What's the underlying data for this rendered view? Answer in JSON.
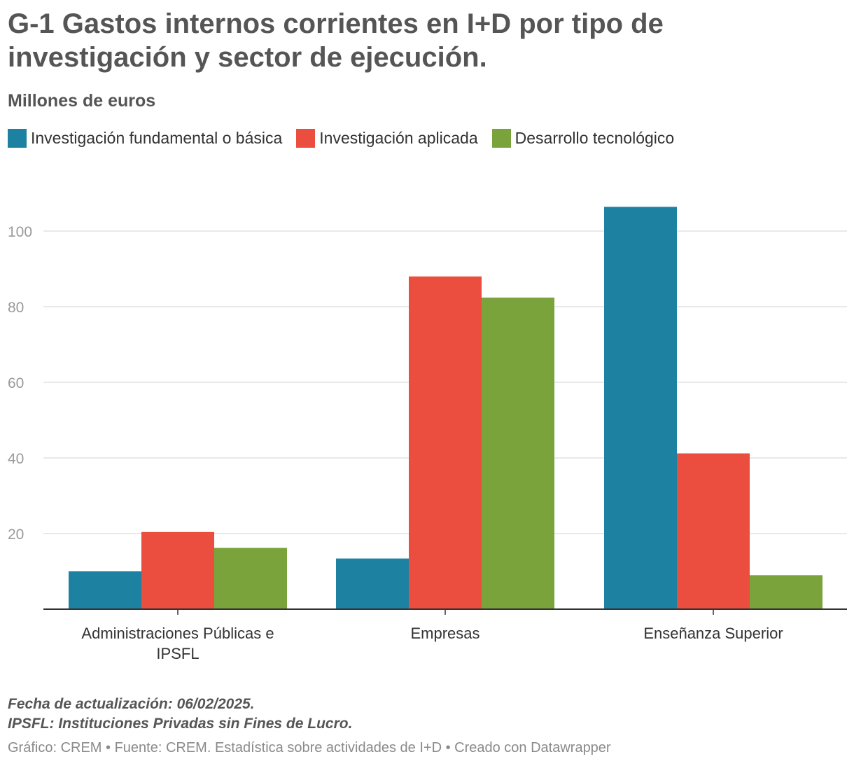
{
  "title": "G-1 Gastos internos corrientes en I+D por tipo de investigación y sector de ejecución.",
  "subtitle": "Millones de euros",
  "notes": {
    "line1": "Fecha de actualización: 06/02/2025.",
    "line2": "IPSFL: Instituciones Privadas sin Fines de Lucro."
  },
  "source": "Gráfico: CREM • Fuente: CREM. Estadística sobre actividades de I+D • Creado con Datawrapper",
  "colors": {
    "fundamental": "#1d81a2",
    "aplicada": "#eb4d3e",
    "desarrollo": "#7aa33b",
    "grid": "#e2e2e2",
    "axis": "#333333",
    "tick_text": "#9a9a9a"
  },
  "chart_data": {
    "type": "bar",
    "categories": [
      [
        "Administraciones Públicas e",
        "IPSFL"
      ],
      [
        "Empresas"
      ],
      [
        "Enseñanza Superior"
      ]
    ],
    "series": [
      {
        "name": "Investigación fundamental o básica",
        "values": [
          10.0,
          13.4,
          106.4
        ]
      },
      {
        "name": "Investigación aplicada",
        "values": [
          20.4,
          88.0,
          41.2
        ]
      },
      {
        "name": "Desarrollo tecnológico",
        "values": [
          16.2,
          82.4,
          9.0
        ]
      }
    ],
    "ylim": [
      0,
      100
    ],
    "yticks": [
      20,
      40,
      60,
      80,
      100
    ],
    "grid": true,
    "legend": "top-left"
  }
}
